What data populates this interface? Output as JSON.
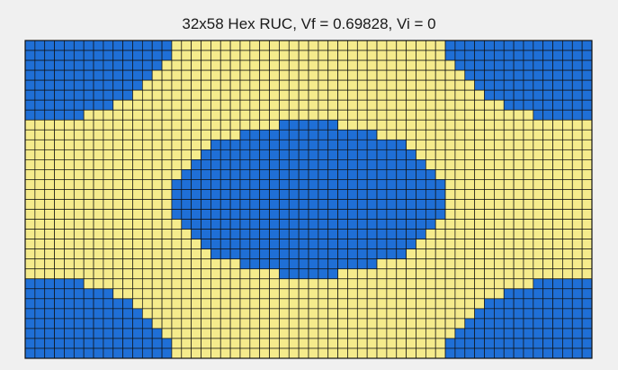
{
  "title": "32x58 Hex RUC, Vf = 0.69828, Vi = 0",
  "ruc": {
    "rows": 32,
    "cols": 58,
    "fiber_color": "#1f6fd6",
    "matrix_color": "#f5eb8c",
    "grid_line_color": "#111111"
  }
}
